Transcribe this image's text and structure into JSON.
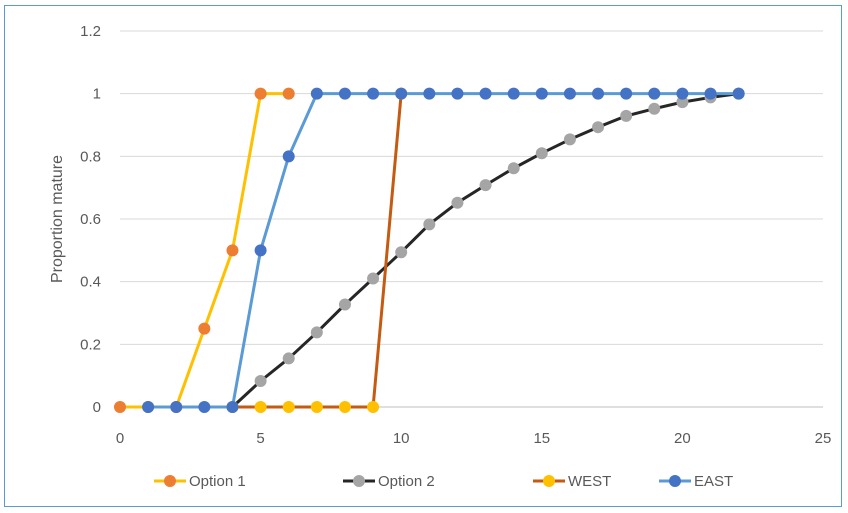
{
  "chart_data": {
    "type": "line",
    "title": "",
    "xlabel": "",
    "ylabel": "Proportion mature",
    "xlim": [
      0,
      25
    ],
    "ylim": [
      0,
      1.2
    ],
    "xticks": [
      0,
      5,
      10,
      15,
      20,
      25
    ],
    "yticks": [
      0,
      0.2,
      0.4,
      0.6,
      0.8,
      1,
      1.2
    ],
    "grid": true,
    "legend_position": "bottom",
    "series": [
      {
        "name": "Option 1",
        "line_color": "#ffc000",
        "marker_color": "#ed7d31",
        "points": [
          [
            0,
            0
          ],
          [
            1,
            0
          ],
          [
            2,
            0
          ],
          [
            3,
            0.25
          ],
          [
            4,
            0.5
          ],
          [
            5,
            1
          ],
          [
            6,
            1
          ]
        ]
      },
      {
        "name": "Option 2",
        "line_color": "#262626",
        "marker_color": "#a5a5a5",
        "points": [
          [
            4,
            0
          ],
          [
            5,
            0.083
          ],
          [
            6,
            0.155
          ],
          [
            7,
            0.238
          ],
          [
            8,
            0.327
          ],
          [
            9,
            0.41
          ],
          [
            10,
            0.494
          ],
          [
            11,
            0.583
          ],
          [
            12,
            0.652
          ],
          [
            13,
            0.708
          ],
          [
            14,
            0.762
          ],
          [
            15,
            0.81
          ],
          [
            16,
            0.854
          ],
          [
            17,
            0.893
          ],
          [
            18,
            0.929
          ],
          [
            19,
            0.952
          ],
          [
            20,
            0.973
          ],
          [
            21,
            0.988
          ],
          [
            22,
            1
          ]
        ]
      },
      {
        "name": "WEST",
        "line_color": "#c55a11",
        "marker_color": "#ffc000",
        "points": [
          [
            4,
            0
          ],
          [
            5,
            0
          ],
          [
            6,
            0
          ],
          [
            7,
            0
          ],
          [
            8,
            0
          ],
          [
            9,
            0
          ],
          [
            10,
            1
          ]
        ]
      },
      {
        "name": "EAST",
        "line_color": "#5b9bd5",
        "marker_color": "#4472c4",
        "points": [
          [
            1,
            0
          ],
          [
            2,
            0
          ],
          [
            3,
            0
          ],
          [
            4,
            0
          ],
          [
            5,
            0.5
          ],
          [
            6,
            0.8
          ],
          [
            7,
            1
          ],
          [
            8,
            1
          ],
          [
            9,
            1
          ],
          [
            10,
            1
          ],
          [
            11,
            1
          ],
          [
            12,
            1
          ],
          [
            13,
            1
          ],
          [
            14,
            1
          ],
          [
            15,
            1
          ],
          [
            16,
            1
          ],
          [
            17,
            1
          ],
          [
            18,
            1
          ],
          [
            19,
            1
          ],
          [
            20,
            1
          ],
          [
            21,
            1
          ],
          [
            22,
            1
          ]
        ]
      }
    ]
  }
}
